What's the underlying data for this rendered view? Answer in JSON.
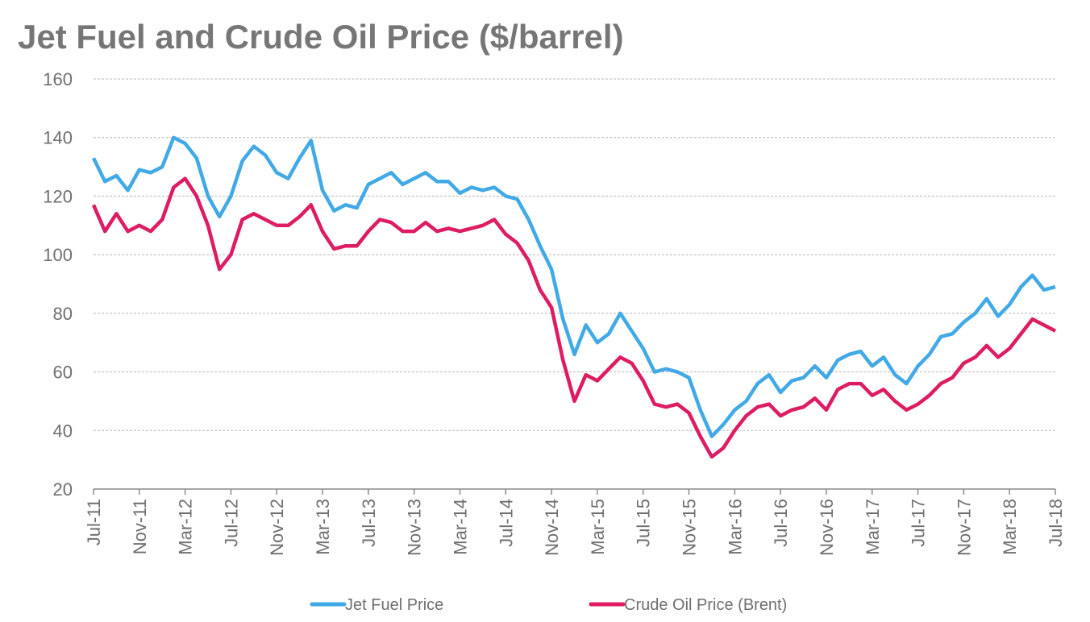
{
  "chart_data": {
    "type": "line",
    "title": "Jet Fuel and Crude Oil Price ($/barrel)",
    "xlabel": "",
    "ylabel": "",
    "ylim": [
      20,
      160
    ],
    "yticks": [
      20,
      40,
      60,
      80,
      100,
      120,
      140,
      160
    ],
    "grid": true,
    "legend_position": "bottom",
    "xtick_labels": [
      "Jul-11",
      "Nov-11",
      "Mar-12",
      "Jul-12",
      "Nov-12",
      "Mar-13",
      "Jul-13",
      "Nov-13",
      "Mar-14",
      "Jul-14",
      "Nov-14",
      "Mar-15",
      "Jul-15",
      "Nov-15",
      "Mar-16",
      "Jul-16",
      "Nov-16",
      "Mar-17",
      "Jul-17",
      "Nov-17",
      "Mar-18",
      "Jul-18"
    ],
    "series": [
      {
        "name": "Jet Fuel Price",
        "color": "#41a9e6",
        "values": [
          133,
          125,
          127,
          122,
          129,
          128,
          130,
          140,
          138,
          133,
          120,
          113,
          120,
          132,
          137,
          134,
          128,
          126,
          133,
          139,
          122,
          115,
          117,
          116,
          124,
          126,
          128,
          124,
          126,
          128,
          125,
          125,
          121,
          123,
          122,
          123,
          120,
          119,
          112,
          103,
          95,
          78,
          66,
          76,
          70,
          73,
          80,
          74,
          68,
          60,
          61,
          60,
          58,
          47,
          38,
          42,
          47,
          50,
          56,
          59,
          53,
          57,
          58,
          62,
          58,
          64,
          66,
          67,
          62,
          65,
          59,
          56,
          62,
          66,
          72,
          73,
          77,
          80,
          85,
          79,
          83,
          89,
          93,
          88,
          89
        ]
      },
      {
        "name": "Crude Oil Price (Brent)",
        "color": "#dd1c64",
        "values": [
          117,
          108,
          114,
          108,
          110,
          108,
          112,
          123,
          126,
          120,
          110,
          95,
          100,
          112,
          114,
          112,
          110,
          110,
          113,
          117,
          108,
          102,
          103,
          103,
          108,
          112,
          111,
          108,
          108,
          111,
          108,
          109,
          108,
          109,
          110,
          112,
          107,
          104,
          98,
          88,
          82,
          64,
          50,
          59,
          57,
          61,
          65,
          63,
          57,
          49,
          48,
          49,
          46,
          38,
          31,
          34,
          40,
          45,
          48,
          49,
          45,
          47,
          48,
          51,
          47,
          54,
          56,
          56,
          52,
          54,
          50,
          47,
          49,
          52,
          56,
          58,
          63,
          65,
          69,
          65,
          68,
          73,
          78,
          76,
          74
        ]
      }
    ]
  }
}
